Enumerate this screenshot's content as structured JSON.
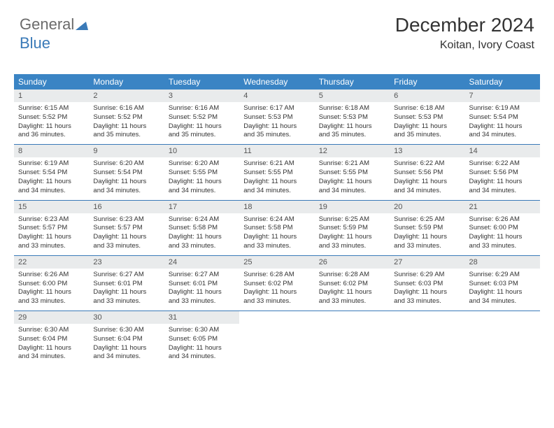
{
  "logo": {
    "part1": "General",
    "part2": "Blue"
  },
  "header": {
    "title": "December 2024",
    "location": "Koitan, Ivory Coast"
  },
  "colors": {
    "header_bg": "#3a84c4",
    "daynum_bg": "#e9ebec",
    "week_border": "#3a7ab8",
    "logo_gray": "#6b6b6b",
    "logo_blue": "#3a7ab8",
    "text": "#333333",
    "background": "#ffffff"
  },
  "typography": {
    "title_fontsize": 28,
    "location_fontsize": 16,
    "dayhead_fontsize": 12,
    "daynum_fontsize": 11,
    "info_fontsize": 9.5
  },
  "dayHeaders": [
    "Sunday",
    "Monday",
    "Tuesday",
    "Wednesday",
    "Thursday",
    "Friday",
    "Saturday"
  ],
  "weeks": [
    [
      {
        "n": "1",
        "sr": "6:15 AM",
        "ss": "5:52 PM",
        "dh": "11",
        "dm": "36"
      },
      {
        "n": "2",
        "sr": "6:16 AM",
        "ss": "5:52 PM",
        "dh": "11",
        "dm": "35"
      },
      {
        "n": "3",
        "sr": "6:16 AM",
        "ss": "5:52 PM",
        "dh": "11",
        "dm": "35"
      },
      {
        "n": "4",
        "sr": "6:17 AM",
        "ss": "5:53 PM",
        "dh": "11",
        "dm": "35"
      },
      {
        "n": "5",
        "sr": "6:18 AM",
        "ss": "5:53 PM",
        "dh": "11",
        "dm": "35"
      },
      {
        "n": "6",
        "sr": "6:18 AM",
        "ss": "5:53 PM",
        "dh": "11",
        "dm": "35"
      },
      {
        "n": "7",
        "sr": "6:19 AM",
        "ss": "5:54 PM",
        "dh": "11",
        "dm": "34"
      }
    ],
    [
      {
        "n": "8",
        "sr": "6:19 AM",
        "ss": "5:54 PM",
        "dh": "11",
        "dm": "34"
      },
      {
        "n": "9",
        "sr": "6:20 AM",
        "ss": "5:54 PM",
        "dh": "11",
        "dm": "34"
      },
      {
        "n": "10",
        "sr": "6:20 AM",
        "ss": "5:55 PM",
        "dh": "11",
        "dm": "34"
      },
      {
        "n": "11",
        "sr": "6:21 AM",
        "ss": "5:55 PM",
        "dh": "11",
        "dm": "34"
      },
      {
        "n": "12",
        "sr": "6:21 AM",
        "ss": "5:55 PM",
        "dh": "11",
        "dm": "34"
      },
      {
        "n": "13",
        "sr": "6:22 AM",
        "ss": "5:56 PM",
        "dh": "11",
        "dm": "34"
      },
      {
        "n": "14",
        "sr": "6:22 AM",
        "ss": "5:56 PM",
        "dh": "11",
        "dm": "34"
      }
    ],
    [
      {
        "n": "15",
        "sr": "6:23 AM",
        "ss": "5:57 PM",
        "dh": "11",
        "dm": "33"
      },
      {
        "n": "16",
        "sr": "6:23 AM",
        "ss": "5:57 PM",
        "dh": "11",
        "dm": "33"
      },
      {
        "n": "17",
        "sr": "6:24 AM",
        "ss": "5:58 PM",
        "dh": "11",
        "dm": "33"
      },
      {
        "n": "18",
        "sr": "6:24 AM",
        "ss": "5:58 PM",
        "dh": "11",
        "dm": "33"
      },
      {
        "n": "19",
        "sr": "6:25 AM",
        "ss": "5:59 PM",
        "dh": "11",
        "dm": "33"
      },
      {
        "n": "20",
        "sr": "6:25 AM",
        "ss": "5:59 PM",
        "dh": "11",
        "dm": "33"
      },
      {
        "n": "21",
        "sr": "6:26 AM",
        "ss": "6:00 PM",
        "dh": "11",
        "dm": "33"
      }
    ],
    [
      {
        "n": "22",
        "sr": "6:26 AM",
        "ss": "6:00 PM",
        "dh": "11",
        "dm": "33"
      },
      {
        "n": "23",
        "sr": "6:27 AM",
        "ss": "6:01 PM",
        "dh": "11",
        "dm": "33"
      },
      {
        "n": "24",
        "sr": "6:27 AM",
        "ss": "6:01 PM",
        "dh": "11",
        "dm": "33"
      },
      {
        "n": "25",
        "sr": "6:28 AM",
        "ss": "6:02 PM",
        "dh": "11",
        "dm": "33"
      },
      {
        "n": "26",
        "sr": "6:28 AM",
        "ss": "6:02 PM",
        "dh": "11",
        "dm": "33"
      },
      {
        "n": "27",
        "sr": "6:29 AM",
        "ss": "6:03 PM",
        "dh": "11",
        "dm": "33"
      },
      {
        "n": "28",
        "sr": "6:29 AM",
        "ss": "6:03 PM",
        "dh": "11",
        "dm": "34"
      }
    ],
    [
      {
        "n": "29",
        "sr": "6:30 AM",
        "ss": "6:04 PM",
        "dh": "11",
        "dm": "34"
      },
      {
        "n": "30",
        "sr": "6:30 AM",
        "ss": "6:04 PM",
        "dh": "11",
        "dm": "34"
      },
      {
        "n": "31",
        "sr": "6:30 AM",
        "ss": "6:05 PM",
        "dh": "11",
        "dm": "34"
      },
      null,
      null,
      null,
      null
    ]
  ],
  "labels": {
    "sunrise": "Sunrise:",
    "sunset": "Sunset:",
    "daylight_prefix": "Daylight:",
    "hours_word": "hours",
    "and_word": "and",
    "minutes_word": "minutes."
  }
}
